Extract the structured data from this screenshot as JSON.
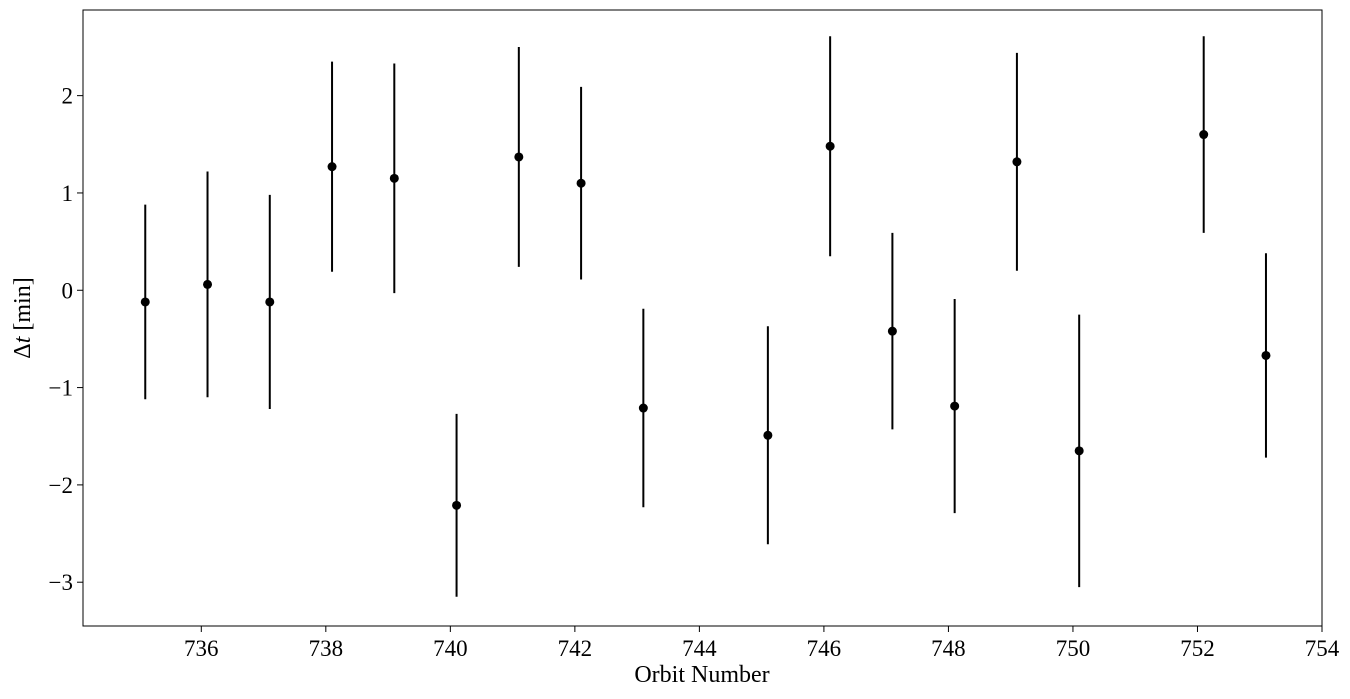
{
  "chart_data": {
    "type": "scatter",
    "style": "errorbar",
    "title": "",
    "xlabel": "Orbit Number",
    "ylabel": "Δt [min]",
    "ylabel_parts": {
      "symbol": "Δ",
      "var": "t",
      "unit": " [min]"
    },
    "xlim": [
      734.1,
      754
    ],
    "ylim": [
      -3.45,
      2.88
    ],
    "xticks": [
      736,
      738,
      740,
      742,
      744,
      746,
      748,
      750,
      752,
      754
    ],
    "yticks": [
      -3,
      -2,
      -1,
      0,
      1,
      2
    ],
    "grid": false,
    "color": "#000000",
    "points": [
      {
        "x": 735.1,
        "y": -0.12,
        "err": 1.0
      },
      {
        "x": 736.1,
        "y": 0.06,
        "err": 1.16
      },
      {
        "x": 737.1,
        "y": -0.12,
        "err": 1.1
      },
      {
        "x": 738.1,
        "y": 1.27,
        "err": 1.08
      },
      {
        "x": 739.1,
        "y": 1.15,
        "err": 1.18
      },
      {
        "x": 740.1,
        "y": -2.21,
        "err": 0.94
      },
      {
        "x": 741.1,
        "y": 1.37,
        "err": 1.13
      },
      {
        "x": 742.1,
        "y": 1.1,
        "err": 0.99
      },
      {
        "x": 743.1,
        "y": -1.21,
        "err": 1.02
      },
      {
        "x": 745.1,
        "y": -1.49,
        "err": 1.12
      },
      {
        "x": 746.1,
        "y": 1.48,
        "err": 1.13
      },
      {
        "x": 747.1,
        "y": -0.42,
        "err": 1.01
      },
      {
        "x": 748.1,
        "y": -1.19,
        "err": 1.1
      },
      {
        "x": 749.1,
        "y": 1.32,
        "err": 1.12
      },
      {
        "x": 750.1,
        "y": -1.65,
        "err": 1.4
      },
      {
        "x": 752.1,
        "y": 1.6,
        "err": 1.01
      },
      {
        "x": 753.1,
        "y": -0.67,
        "err": 1.05
      }
    ]
  }
}
